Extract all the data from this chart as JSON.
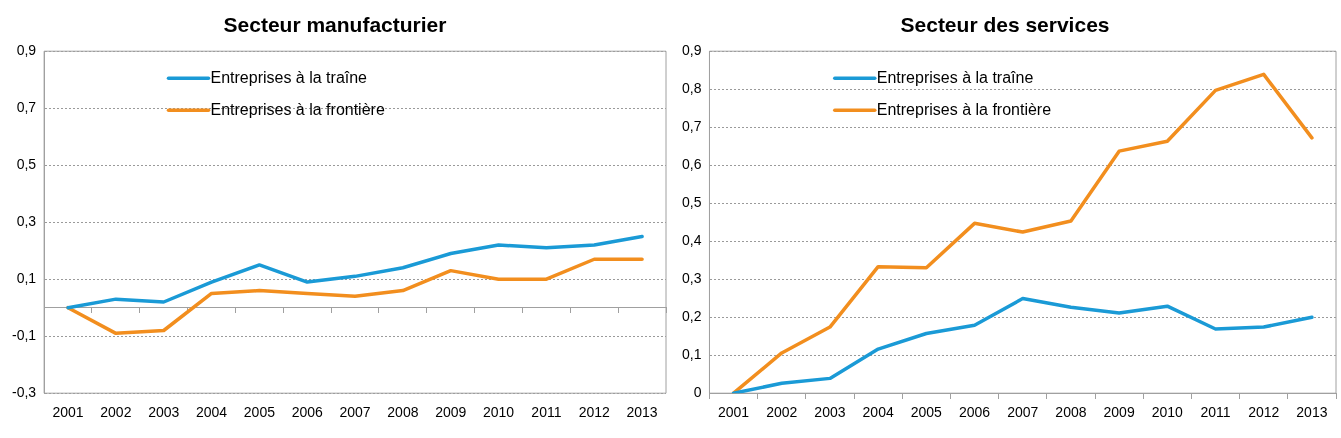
{
  "chart_data": [
    {
      "type": "line",
      "title": "Secteur manufacturier",
      "categories": [
        "2001",
        "2002",
        "2003",
        "2004",
        "2005",
        "2006",
        "2007",
        "2008",
        "2009",
        "2010",
        "2011",
        "2012",
        "2013"
      ],
      "series": [
        {
          "name": "Entreprises à la traîne",
          "color": "#1a9ad6",
          "values": [
            0,
            0.03,
            0.02,
            0.09,
            0.15,
            0.09,
            0.11,
            0.14,
            0.19,
            0.22,
            0.21,
            0.22,
            0.25
          ]
        },
        {
          "name": "Entreprises à la frontière",
          "color": "#f28e1e",
          "values": [
            0,
            -0.09,
            -0.08,
            0.05,
            0.06,
            0.05,
            0.04,
            0.06,
            0.13,
            0.1,
            0.1,
            0.17,
            0.17
          ]
        }
      ],
      "ylim": [
        -0.3,
        0.9
      ],
      "yticks": [
        {
          "value": -0.3,
          "label": "-0,3"
        },
        {
          "value": -0.1,
          "label": "-0,1"
        },
        {
          "value": 0.1,
          "label": "0,1"
        },
        {
          "value": 0.3,
          "label": "0,3"
        },
        {
          "value": 0.5,
          "label": "0,5"
        },
        {
          "value": 0.7,
          "label": "0,7"
        },
        {
          "value": 0.9,
          "label": "0,9"
        }
      ],
      "grid": "y",
      "legend": "top left",
      "marker": "none",
      "line_style": "solid"
    },
    {
      "type": "line",
      "title": "Secteur des services",
      "categories": [
        "2001",
        "2002",
        "2003",
        "2004",
        "2005",
        "2006",
        "2007",
        "2008",
        "2009",
        "2010",
        "2011",
        "2012",
        "2013"
      ],
      "series": [
        {
          "name": "Entreprises à la traîne",
          "color": "#1a9ad6",
          "values": [
            0,
            0.026,
            0.039,
            0.116,
            0.157,
            0.179,
            0.249,
            0.226,
            0.211,
            0.229,
            0.169,
            0.174,
            0.2
          ]
        },
        {
          "name": "Entreprises à la frontière",
          "color": "#f28e1e",
          "values": [
            0,
            0.106,
            0.174,
            0.333,
            0.33,
            0.447,
            0.424,
            0.453,
            0.637,
            0.663,
            0.797,
            0.839,
            0.672
          ]
        }
      ],
      "ylim": [
        0,
        0.9
      ],
      "yticks": [
        {
          "value": 0,
          "label": "0"
        },
        {
          "value": 0.1,
          "label": "0,1"
        },
        {
          "value": 0.2,
          "label": "0,2"
        },
        {
          "value": 0.3,
          "label": "0,3"
        },
        {
          "value": 0.4,
          "label": "0,4"
        },
        {
          "value": 0.5,
          "label": "0,5"
        },
        {
          "value": 0.6,
          "label": "0,6"
        },
        {
          "value": 0.7,
          "label": "0,7"
        },
        {
          "value": 0.8,
          "label": "0,8"
        },
        {
          "value": 0.9,
          "label": "0,9"
        }
      ],
      "grid": "y",
      "legend": "top left",
      "marker": "none",
      "line_style": "solid"
    }
  ]
}
